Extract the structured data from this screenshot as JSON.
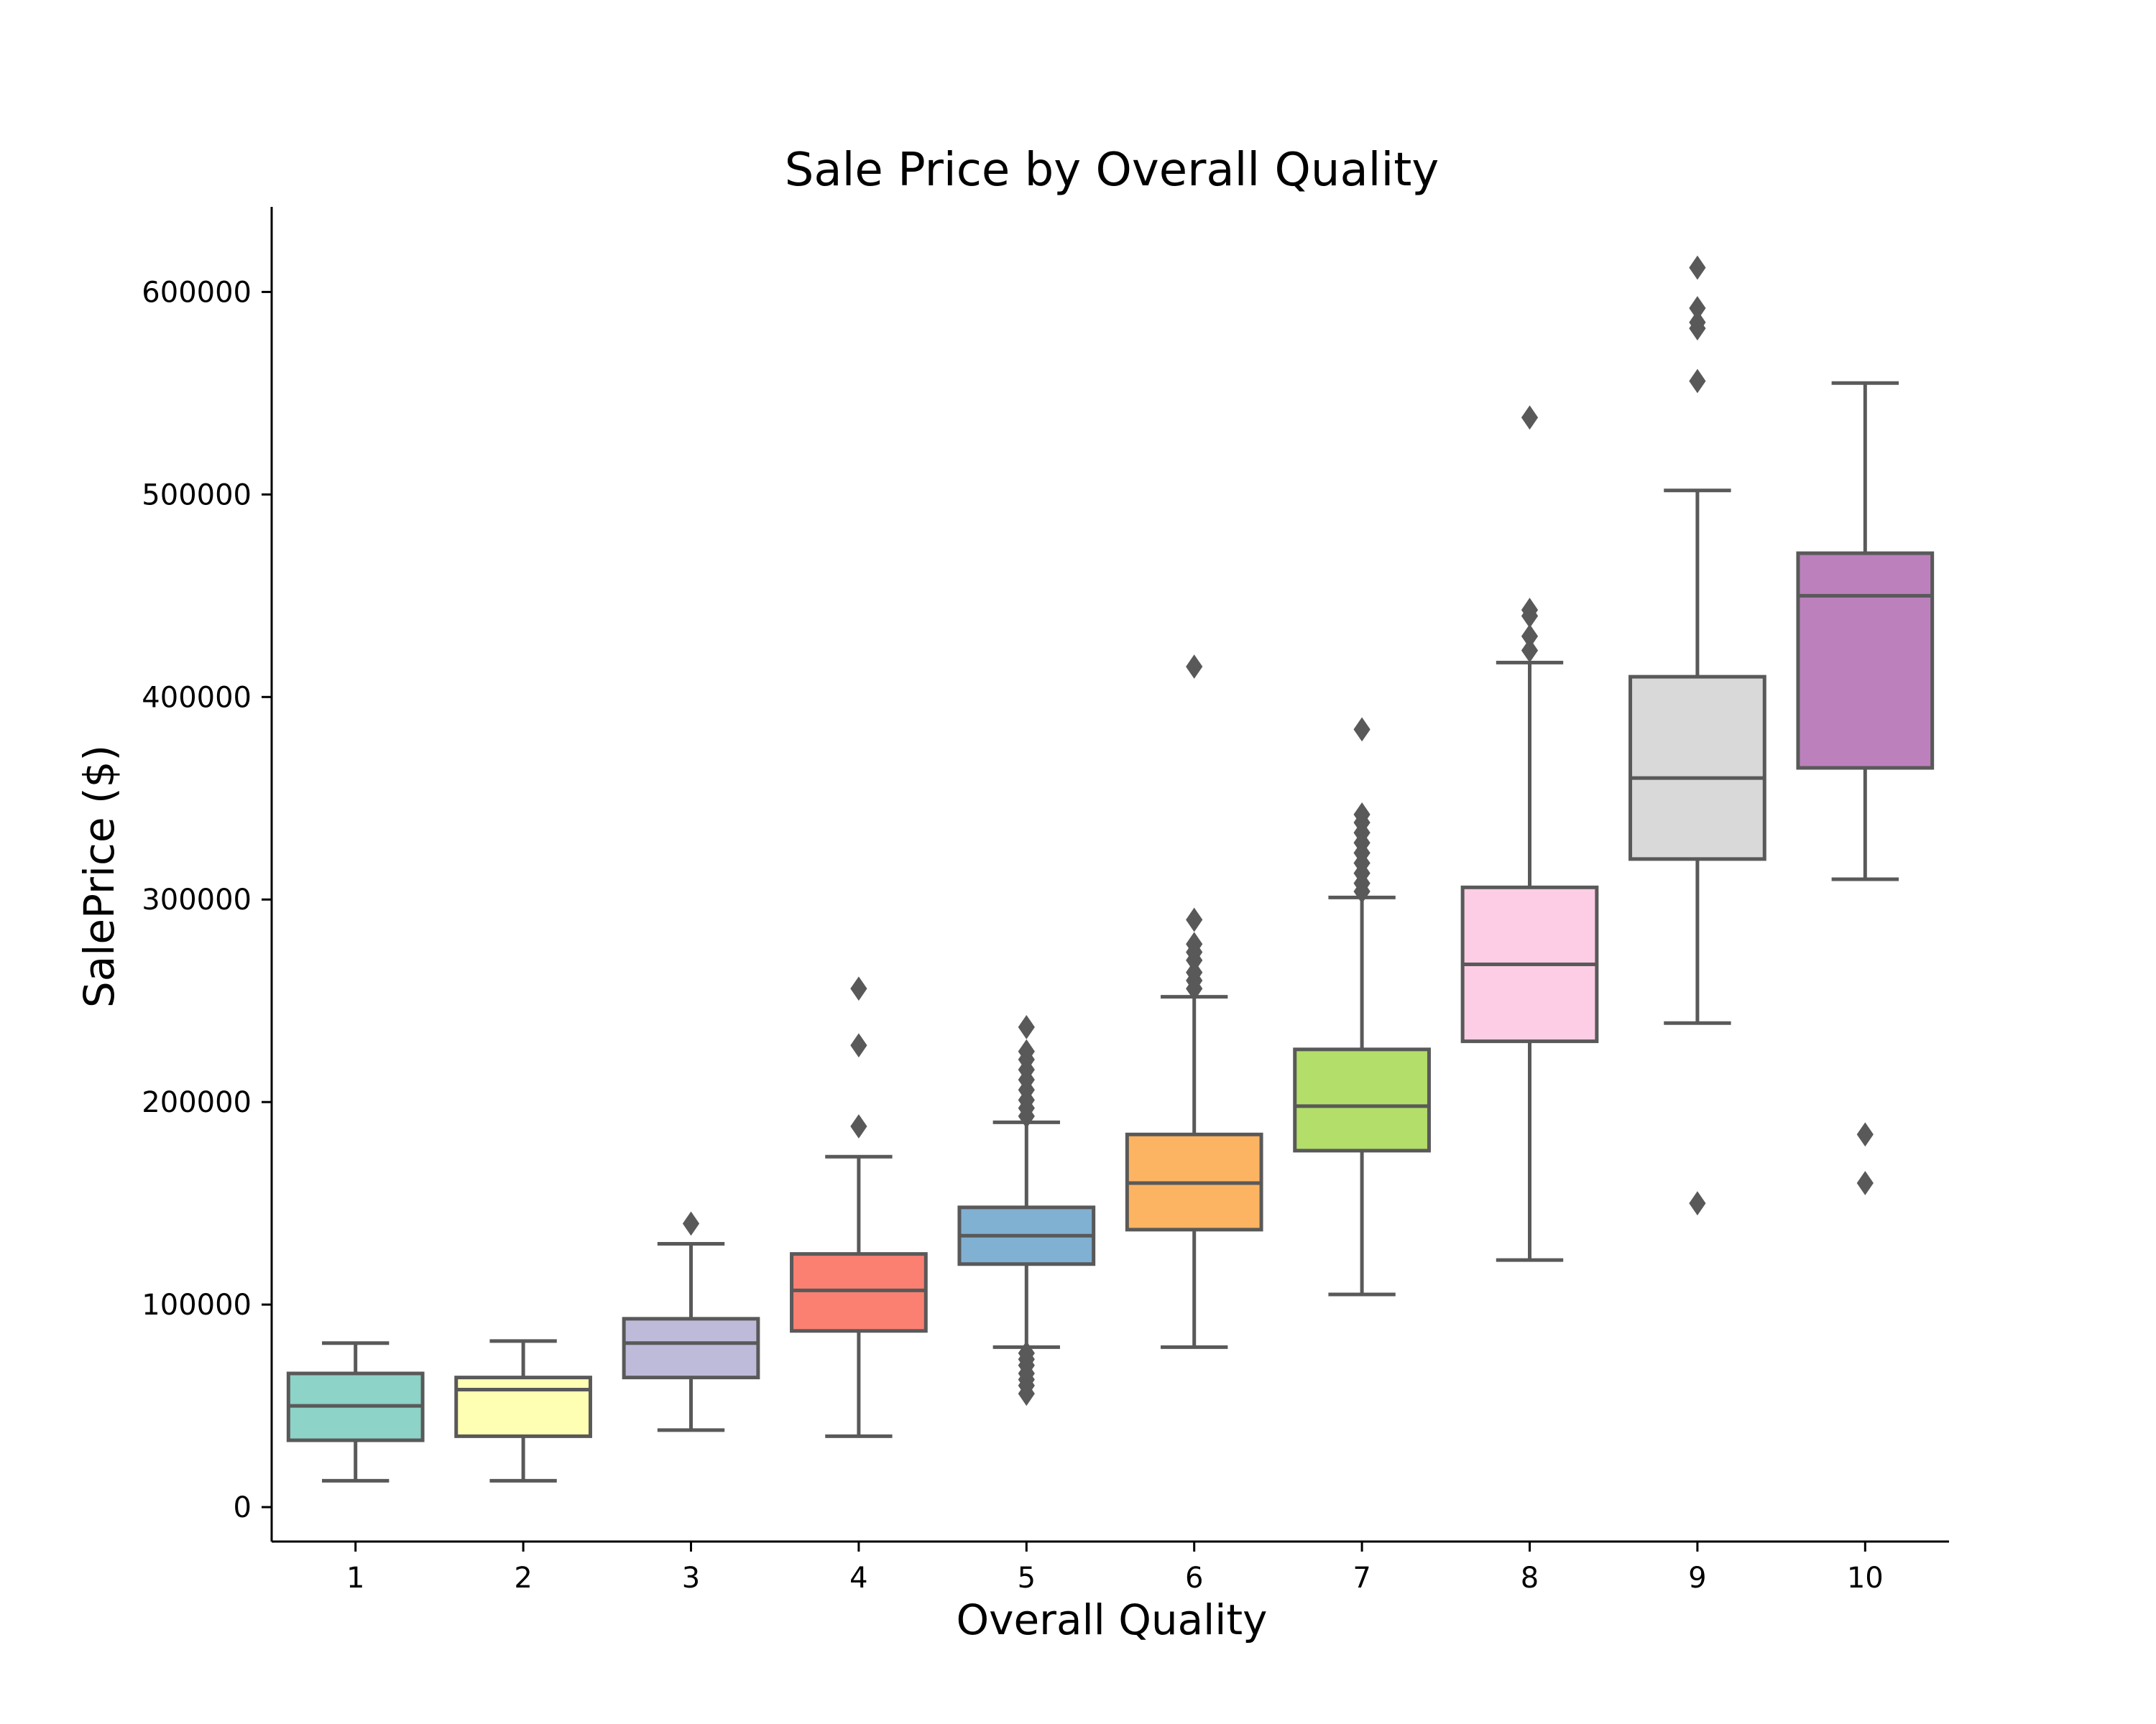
{
  "chart_data": {
    "type": "box",
    "title": "Sale Price by Overall Quality",
    "xlabel": "Overall Quality",
    "ylabel": "SalePrice ($)",
    "categories": [
      "1",
      "2",
      "3",
      "4",
      "5",
      "6",
      "7",
      "8",
      "9",
      "10"
    ],
    "ylim": [
      -17000,
      642000
    ],
    "yticks": [
      0,
      100000,
      200000,
      300000,
      400000,
      500000,
      600000
    ],
    "ytick_labels": [
      "0",
      "100000",
      "200000",
      "300000",
      "400000",
      "500000",
      "600000"
    ],
    "grid": false,
    "boxes": [
      {
        "category": "1",
        "whisker_low": 13000,
        "q1": 33000,
        "median": 50000,
        "q3": 66000,
        "whisker_high": 81000,
        "outliers": [],
        "color": "#8dd3c7"
      },
      {
        "category": "2",
        "whisker_low": 13000,
        "q1": 35000,
        "median": 58000,
        "q3": 64000,
        "whisker_high": 82000,
        "outliers": [],
        "color": "#ffffb3"
      },
      {
        "category": "3",
        "whisker_low": 38000,
        "q1": 64000,
        "median": 81000,
        "q3": 93000,
        "whisker_high": 130000,
        "outliers": [
          140000
        ],
        "color": "#bebada"
      },
      {
        "category": "4",
        "whisker_low": 35000,
        "q1": 87000,
        "median": 107000,
        "q3": 125000,
        "whisker_high": 173000,
        "outliers": [
          188000,
          228000,
          256000
        ],
        "color": "#fb8072"
      },
      {
        "category": "5",
        "whisker_low": 79000,
        "q1": 120000,
        "median": 134000,
        "q3": 148000,
        "whisker_high": 190000,
        "outliers": [
          56000,
          60000,
          63000,
          66000,
          70000,
          73000,
          76000,
          193000,
          197000,
          201000,
          206000,
          211000,
          216000,
          221000,
          225000,
          237000
        ],
        "color": "#80b1d3"
      },
      {
        "category": "6",
        "whisker_low": 79000,
        "q1": 137000,
        "median": 160000,
        "q3": 184000,
        "whisker_high": 252000,
        "outliers": [
          256000,
          260000,
          264000,
          270000,
          274000,
          278000,
          290000,
          415000
        ],
        "color": "#fdb462"
      },
      {
        "category": "7",
        "whisker_low": 105000,
        "q1": 176000,
        "median": 198000,
        "q3": 226000,
        "whisker_high": 301000,
        "outliers": [
          304000,
          308000,
          313000,
          318000,
          323000,
          328000,
          333000,
          338000,
          342000,
          384000
        ],
        "color": "#b3de69"
      },
      {
        "category": "8",
        "whisker_low": 122000,
        "q1": 230000,
        "median": 268000,
        "q3": 306000,
        "whisker_high": 417000,
        "outliers": [
          423000,
          430000,
          440000,
          443000,
          538000
        ],
        "color": "#fccde5"
      },
      {
        "category": "9",
        "whisker_low": 239000,
        "q1": 320000,
        "median": 360000,
        "q3": 410000,
        "whisker_high": 502000,
        "outliers": [
          150000,
          556000,
          582000,
          585000,
          592000,
          612000
        ],
        "color": "#d9d9d9"
      },
      {
        "category": "10",
        "whisker_low": 310000,
        "q1": 365000,
        "median": 450000,
        "q3": 471000,
        "whisker_high": 555000,
        "outliers": [
          160000,
          184000
        ],
        "color": "#bc80bd"
      }
    ]
  }
}
